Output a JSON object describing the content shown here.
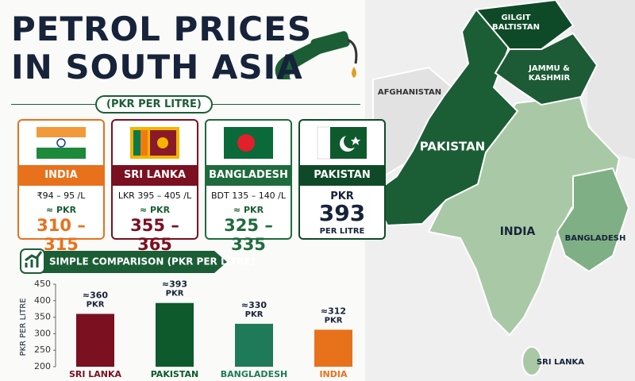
{
  "header": {
    "title_line1": "PETROL PRICES",
    "title_line2": "IN SOUTH ASIA",
    "subtitle": "(PKR PER LITRE)"
  },
  "cards": [
    {
      "name": "INDIA",
      "price": "₹94 – 95 /L",
      "approx": "≈ PKR",
      "pkr": "310 – 315"
    },
    {
      "name": "SRI LANKA",
      "price": "LKR 395 – 405 /L",
      "approx": "≈ PKR",
      "pkr": "355 – 365"
    },
    {
      "name": "BANGLADESH",
      "price": "BDT 135 – 140 /L",
      "approx": "≈ PKR",
      "pkr": "325 – 335"
    },
    {
      "name": "PAKISTAN",
      "unit": "PKR",
      "pkr": "393",
      "note": "PER LITRE"
    }
  ],
  "map": {
    "labels": [
      "GILGIT BALTISTAN",
      "JAMMU & KASHMIR",
      "AFGHANISTAN",
      "PAKISTAN",
      "INDIA",
      "BANGLADESH",
      "SRI LANKA"
    ]
  },
  "chart_data": {
    "type": "bar",
    "title": "SIMPLE COMPARISON (PKR PER LITRE)",
    "y_label": "PKR PER LITRE",
    "categories": [
      "SRI LANKA",
      "PAKISTAN",
      "BANGLADESH",
      "INDIA"
    ],
    "values": [
      360,
      393,
      330,
      312
    ],
    "value_labels": [
      "≈360 PKR",
      "≈393 PKR",
      "≈330 PKR",
      "≈312 PKR"
    ],
    "colors": [
      "#7a1020",
      "#0f5a2c",
      "#1f7a5a",
      "#e8711c"
    ],
    "ylim": [
      200,
      450
    ],
    "yticks": [
      200,
      250,
      300,
      350,
      400,
      450
    ],
    "grid": false
  }
}
